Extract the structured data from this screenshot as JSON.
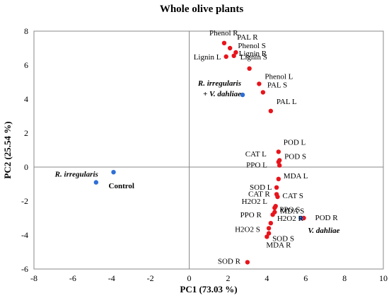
{
  "chart_data": {
    "type": "scatter",
    "title": "Whole olive plants",
    "xlabel": "PC1 (73.03 %)",
    "ylabel": "PC2 (25.54 %)",
    "xlim": [
      -8,
      10
    ],
    "ylim": [
      -6,
      8
    ],
    "xticks": [
      -8,
      -6,
      -4,
      -2,
      0,
      2,
      4,
      6,
      8,
      10
    ],
    "yticks": [
      -6,
      -4,
      -2,
      0,
      2,
      4,
      6,
      8
    ],
    "grid": false,
    "colors": {
      "loadings": "#e8141b",
      "scores": "#2e6fd6"
    },
    "series": [
      {
        "name": "loadings",
        "points": [
          {
            "label": "Phenol R",
            "x": 1.8,
            "y": 7.3
          },
          {
            "label": "PAL R",
            "x": 2.1,
            "y": 7.0
          },
          {
            "label": "Phenol S",
            "x": 2.4,
            "y": 6.75
          },
          {
            "label": "Lignin L",
            "x": 1.9,
            "y": 6.5
          },
          {
            "label": "Lignin R",
            "x": 2.3,
            "y": 6.55
          },
          {
            "label": "Lignin S",
            "x": 3.1,
            "y": 5.8
          },
          {
            "label": "Phenol L",
            "x": 3.6,
            "y": 4.9
          },
          {
            "label": "PAL S",
            "x": 3.8,
            "y": 4.4
          },
          {
            "label": "PAL L",
            "x": 4.2,
            "y": 3.3
          },
          {
            "label": "POD L",
            "x": 4.6,
            "y": 0.9
          },
          {
            "label": "POD S",
            "x": 4.65,
            "y": 0.4
          },
          {
            "label": "CAT L",
            "x": 4.6,
            "y": 0.3
          },
          {
            "label": "PPO L",
            "x": 4.65,
            "y": 0.1
          },
          {
            "label": "MDA L",
            "x": 4.6,
            "y": -0.7
          },
          {
            "label": "SOD L",
            "x": 4.5,
            "y": -1.2
          },
          {
            "label": "CAT R",
            "x": 4.5,
            "y": -1.6
          },
          {
            "label": "CAT S",
            "x": 4.55,
            "y": -1.75
          },
          {
            "label": "H2O2 L",
            "x": 4.45,
            "y": -2.3
          },
          {
            "label": "PPO S",
            "x": 4.4,
            "y": -2.4
          },
          {
            "label": "MDA S",
            "x": 4.4,
            "y": -2.65
          },
          {
            "label": "POD R",
            "x": 5.9,
            "y": -3.0
          },
          {
            "label": "PPO R",
            "x": 4.3,
            "y": -2.8
          },
          {
            "label": "H2O2 R",
            "x": 4.2,
            "y": -3.3
          },
          {
            "label": "H2O2 S",
            "x": 4.1,
            "y": -3.6
          },
          {
            "label": "SOD S",
            "x": 4.1,
            "y": -3.9
          },
          {
            "label": "MDA R",
            "x": 4.0,
            "y": -4.1
          },
          {
            "label": "SOD R",
            "x": 3.0,
            "y": -5.6
          }
        ]
      },
      {
        "name": "scores",
        "points": [
          {
            "label": "R. irregularis\n+ V. dahliae",
            "x": 2.75,
            "y": 4.25
          },
          {
            "label": "Control",
            "x": -3.9,
            "y": -0.3
          },
          {
            "label": "R. irregularis",
            "x": -4.8,
            "y": -0.9
          },
          {
            "label": "V. dahliae",
            "x": 5.75,
            "y": -3.0
          }
        ]
      }
    ]
  }
}
